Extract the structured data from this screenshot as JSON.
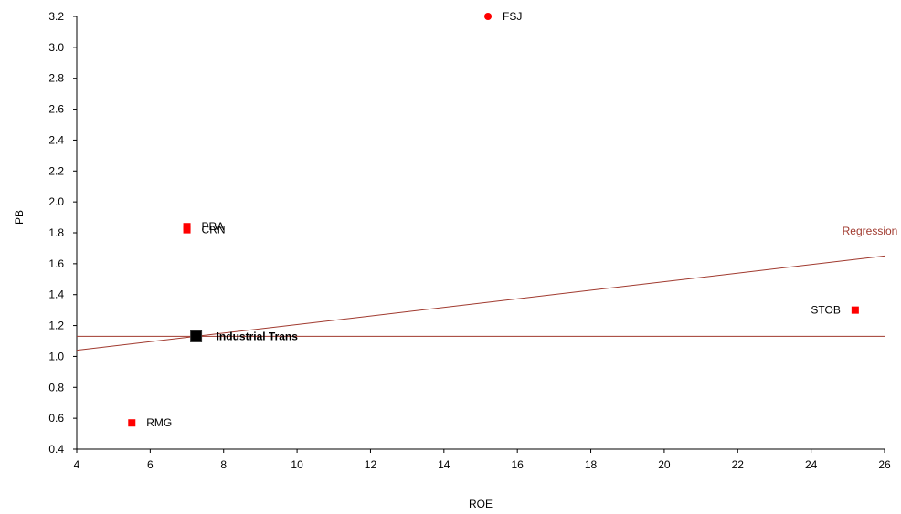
{
  "chart_data": {
    "type": "scatter",
    "title": "",
    "xlabel": "ROE",
    "ylabel": "PB",
    "xlim": [
      4,
      26
    ],
    "ylim": [
      0.4,
      3.2
    ],
    "x_ticks": [
      4,
      6,
      8,
      10,
      12,
      14,
      16,
      18,
      20,
      22,
      24,
      26
    ],
    "y_ticks": [
      0.4,
      0.6,
      0.8,
      1.0,
      1.2,
      1.4,
      1.6,
      1.8,
      2.0,
      2.2,
      2.4,
      2.6,
      2.8,
      3.0,
      3.2
    ],
    "x_tick_labels": [
      "4",
      "6",
      "8",
      "10",
      "12",
      "14",
      "16",
      "18",
      "20",
      "22",
      "24",
      "26"
    ],
    "y_tick_labels": [
      "0.4",
      "0.6",
      "0.8",
      "1.0",
      "1.2",
      "1.4",
      "1.6",
      "1.8",
      "2.0",
      "2.2",
      "2.4",
      "2.6",
      "2.8",
      "3.0",
      "3.2"
    ],
    "grid": false,
    "legend": "none",
    "points": [
      {
        "label": "FSJ",
        "x": 15.2,
        "y": 3.2,
        "marker": "circle",
        "color": "#ff0000",
        "label_side": "right",
        "bold": false
      },
      {
        "label": "PRA",
        "x": 7.0,
        "y": 1.84,
        "marker": "square",
        "color": "#ff0000",
        "label_side": "right",
        "bold": false
      },
      {
        "label": "CRN",
        "x": 7.0,
        "y": 1.82,
        "marker": "square",
        "color": "#ff0000",
        "label_side": "right",
        "bold": false
      },
      {
        "label": "STOB",
        "x": 25.2,
        "y": 1.3,
        "marker": "square",
        "color": "#ff0000",
        "label_side": "left",
        "bold": false
      },
      {
        "label": "RMG",
        "x": 5.5,
        "y": 0.57,
        "marker": "square",
        "color": "#ff0000",
        "label_side": "right",
        "bold": false
      },
      {
        "label": "Industrial Trans",
        "x": 7.25,
        "y": 1.13,
        "marker": "square-large",
        "color": "#000000",
        "label_side": "right",
        "bold": true
      }
    ],
    "lines": [
      {
        "name": "Regression",
        "x": [
          4,
          26
        ],
        "y": [
          1.04,
          1.65
        ],
        "color": "#a0392e"
      },
      {
        "name": "",
        "x": [
          4,
          26
        ],
        "y": [
          1.13,
          1.13
        ],
        "color": "#a0392e"
      }
    ],
    "annotations": [
      {
        "text": "Regression",
        "color": "#a0392e"
      }
    ]
  }
}
